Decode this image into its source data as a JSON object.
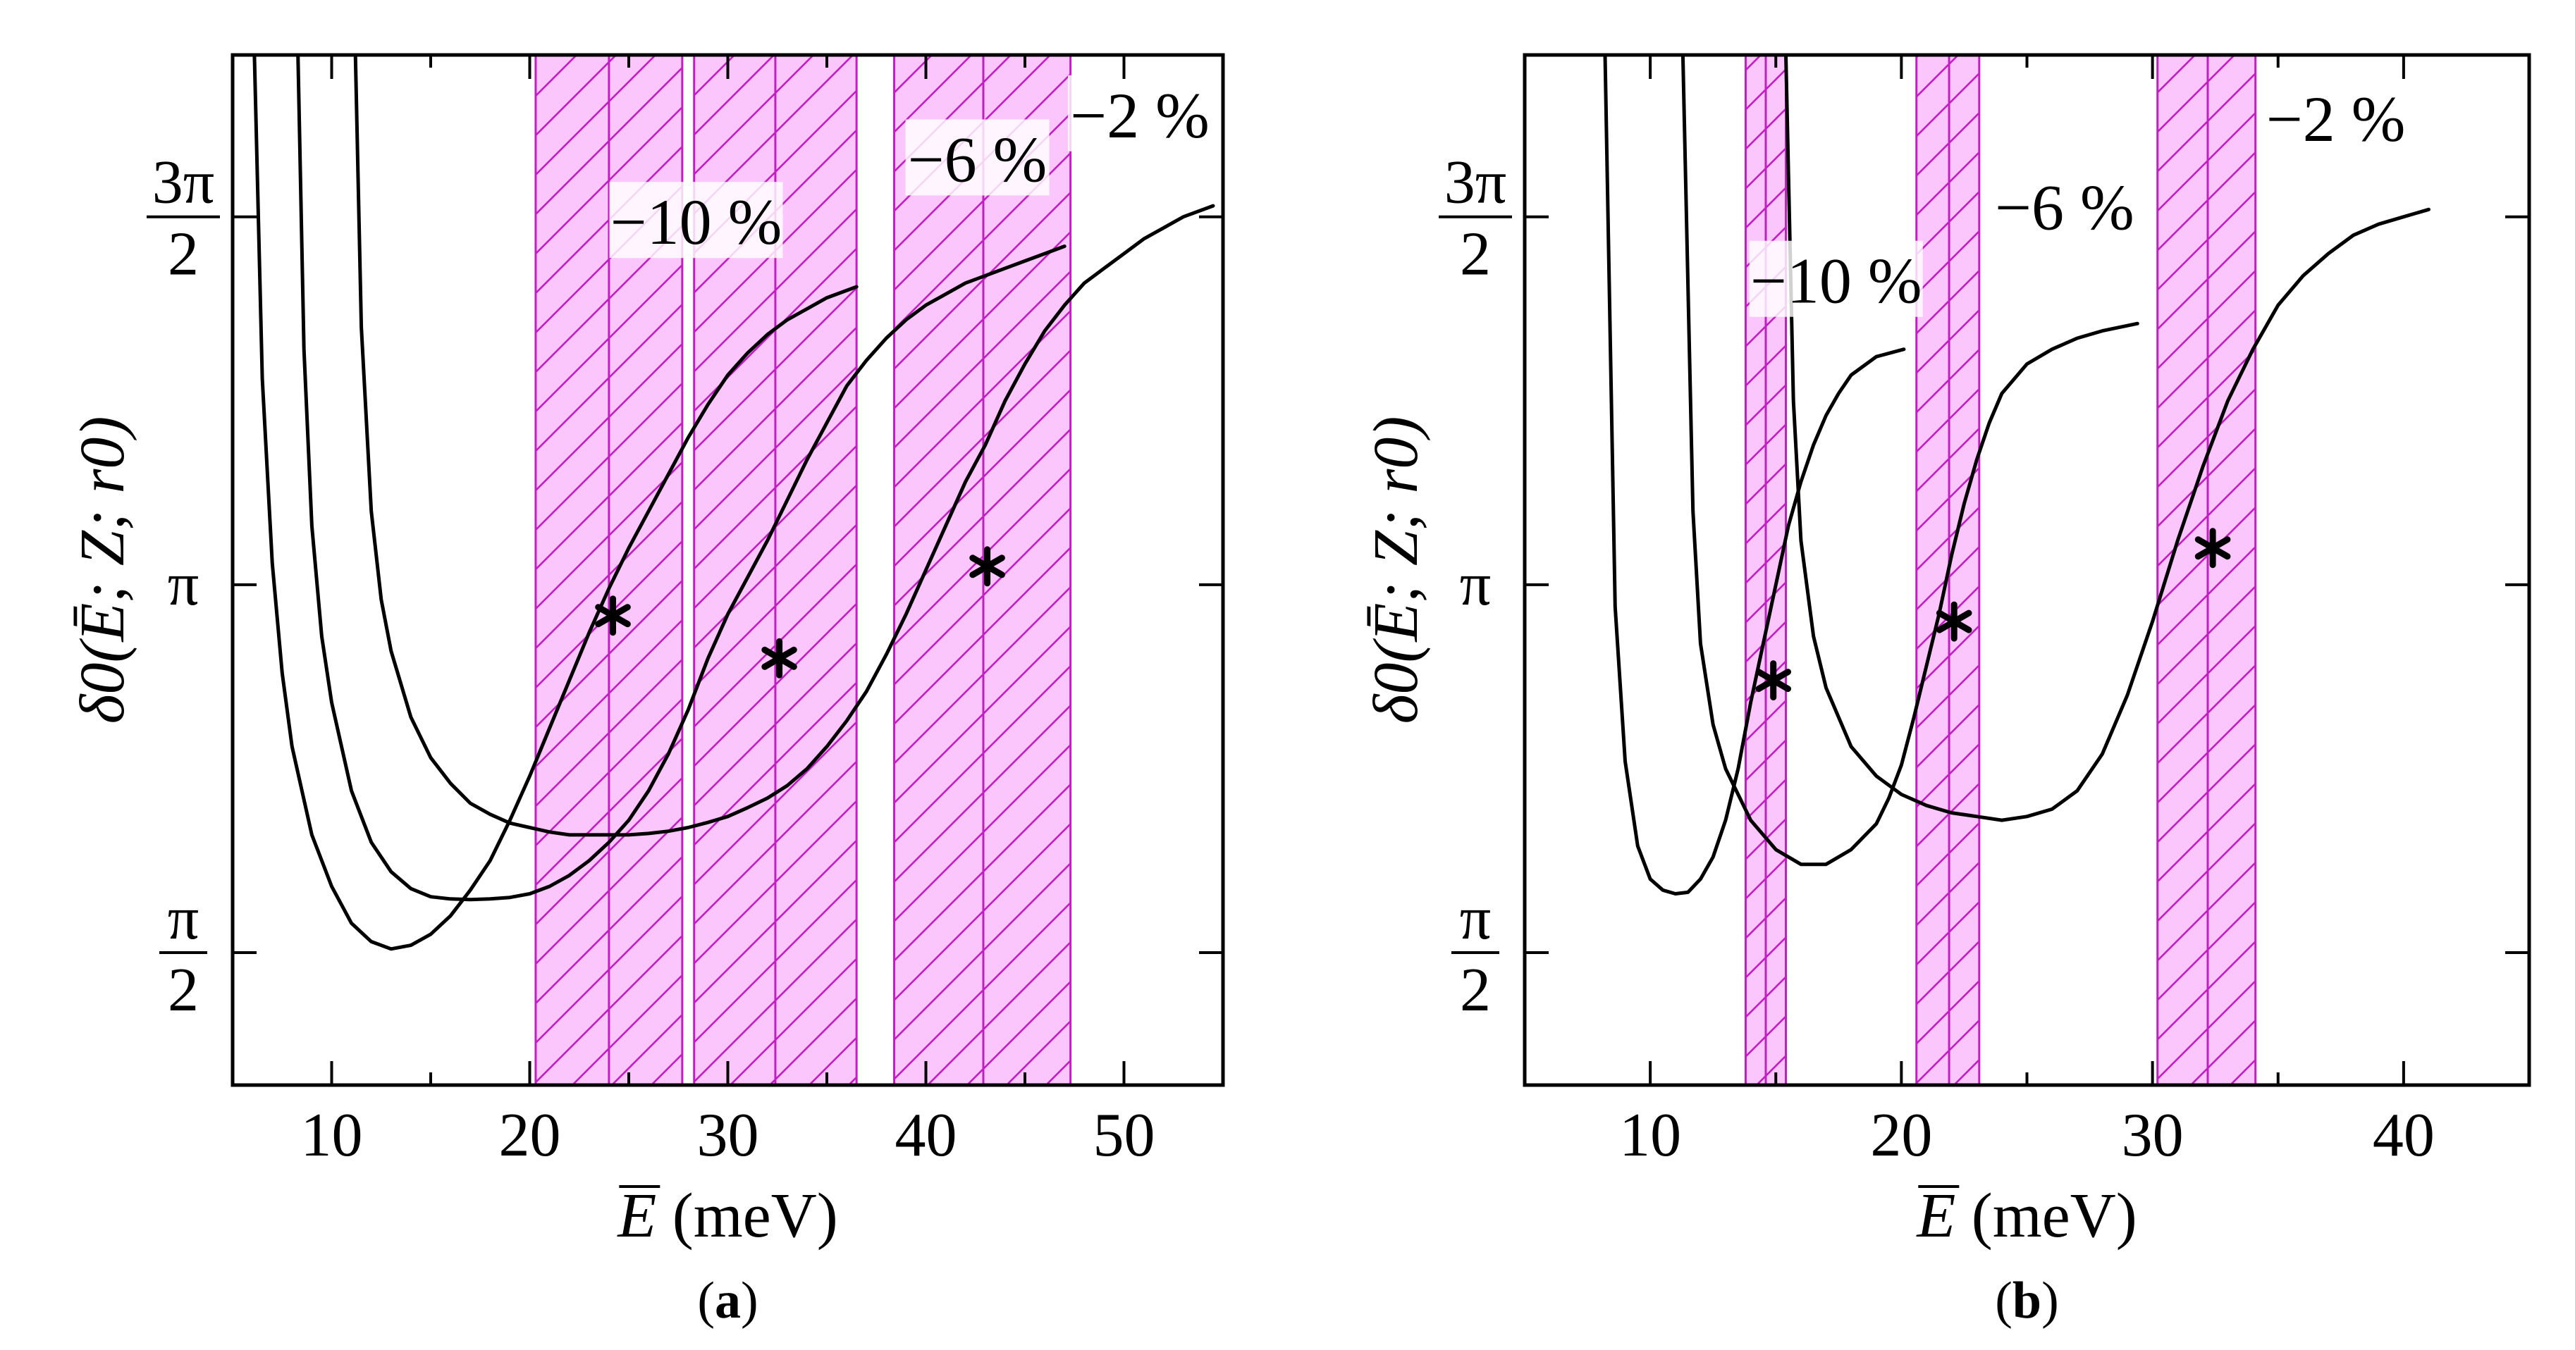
{
  "chart_data": [
    {
      "panel_label": "(a)",
      "panel_letter": "a",
      "type": "line",
      "xlabel_symbol": "E",
      "xlabel_unit": "(meV)",
      "ylabel": "δ0(Ē; Z; r0)",
      "xlim": [
        5,
        55
      ],
      "ylim": [
        0.32,
        1.72
      ],
      "x_ticks_major": [
        10,
        20,
        30,
        40,
        50
      ],
      "x_ticks_minor": [
        15,
        25,
        35,
        45
      ],
      "x_tick_labels": [
        "10",
        "20",
        "30",
        "40",
        "50"
      ],
      "y_ticks": [
        0.5,
        1.0,
        1.5
      ],
      "y_tick_labels": [
        {
          "kind": "frac",
          "num": "π",
          "den": "2"
        },
        {
          "kind": "plain",
          "text": "π"
        },
        {
          "kind": "frac",
          "num": "3π",
          "den": "2"
        }
      ],
      "bands": [
        {
          "x0": 20.3,
          "x1": 27.7,
          "inner": 24.0
        },
        {
          "x0": 28.3,
          "x1": 36.5,
          "inner": 32.4
        },
        {
          "x0": 38.4,
          "x1": 47.3,
          "inner": 42.9
        }
      ],
      "series": [
        {
          "name": "−10 %",
          "x": [
            6.1,
            6.5,
            7,
            7.5,
            8,
            9,
            10,
            11,
            12,
            13,
            14,
            15,
            16,
            17,
            18,
            19,
            20,
            21,
            22,
            23,
            24,
            25,
            26,
            27,
            28,
            29,
            30,
            31,
            32,
            33,
            34,
            35,
            36.5
          ],
          "y": [
            1.72,
            1.28,
            1.03,
            0.88,
            0.78,
            0.66,
            0.59,
            0.54,
            0.515,
            0.505,
            0.51,
            0.525,
            0.55,
            0.585,
            0.625,
            0.68,
            0.74,
            0.805,
            0.87,
            0.935,
            0.995,
            1.05,
            1.1,
            1.15,
            1.2,
            1.245,
            1.285,
            1.315,
            1.34,
            1.36,
            1.375,
            1.39,
            1.405
          ],
          "label": {
            "x": 28.4,
            "y": 1.49
          },
          "marker": {
            "x": 24.2,
            "y": 0.958
          }
        },
        {
          "name": "−6 %",
          "x": [
            8.3,
            8.6,
            9,
            9.5,
            10,
            11,
            12,
            13,
            14,
            15,
            16,
            17,
            18,
            19,
            20,
            21,
            22,
            23,
            24,
            25,
            26,
            27,
            28,
            29,
            30,
            31,
            32,
            33,
            34,
            35,
            36,
            37,
            38,
            39,
            40,
            41,
            42,
            43,
            44,
            45,
            46,
            47
          ],
          "y": [
            1.72,
            1.32,
            1.08,
            0.93,
            0.84,
            0.72,
            0.65,
            0.61,
            0.587,
            0.576,
            0.573,
            0.572,
            0.573,
            0.575,
            0.58,
            0.59,
            0.605,
            0.625,
            0.65,
            0.68,
            0.72,
            0.77,
            0.83,
            0.9,
            0.96,
            1.01,
            1.06,
            1.115,
            1.17,
            1.22,
            1.27,
            1.305,
            1.335,
            1.36,
            1.38,
            1.395,
            1.41,
            1.42,
            1.43,
            1.44,
            1.45,
            1.46
          ],
          "label": {
            "x": 42.6,
            "y": 1.575
          },
          "marker": {
            "x": 32.6,
            "y": 0.9
          }
        },
        {
          "name": "−2 %",
          "x": [
            11.2,
            11.5,
            12,
            12.5,
            13,
            14,
            15,
            16,
            17,
            18,
            19,
            20,
            21,
            22,
            23,
            24,
            25,
            26,
            27,
            28,
            29,
            30,
            31,
            32,
            33,
            34,
            35,
            36,
            37,
            38,
            39,
            40,
            41,
            42,
            43,
            44,
            45,
            46,
            47,
            48,
            49,
            50,
            51,
            52,
            53,
            54.5
          ],
          "y": [
            1.72,
            1.35,
            1.1,
            0.98,
            0.91,
            0.82,
            0.765,
            0.73,
            0.703,
            0.688,
            0.676,
            0.67,
            0.664,
            0.66,
            0.66,
            0.66,
            0.66,
            0.662,
            0.665,
            0.67,
            0.677,
            0.685,
            0.697,
            0.71,
            0.727,
            0.75,
            0.78,
            0.815,
            0.855,
            0.905,
            0.96,
            1.02,
            1.08,
            1.14,
            1.19,
            1.25,
            1.3,
            1.345,
            1.38,
            1.41,
            1.43,
            1.45,
            1.47,
            1.485,
            1.5,
            1.515
          ],
          "label": {
            "x": 50.8,
            "y": 1.635
          },
          "marker": {
            "x": 43.1,
            "y": 1.025
          }
        }
      ]
    },
    {
      "panel_label": "(b)",
      "panel_letter": "b",
      "type": "line",
      "xlabel_symbol": "E",
      "xlabel_unit": "(meV)",
      "ylabel": "δ0(Ē; Z; r0)",
      "xlim": [
        5,
        45
      ],
      "ylim": [
        0.32,
        1.72
      ],
      "x_ticks_major": [
        10,
        20,
        30,
        40
      ],
      "x_ticks_minor": [
        15,
        25,
        35
      ],
      "x_tick_labels": [
        "10",
        "20",
        "30",
        "40"
      ],
      "y_ticks": [
        0.5,
        1.0,
        1.5
      ],
      "y_tick_labels": [
        {
          "kind": "frac",
          "num": "π",
          "den": "2"
        },
        {
          "kind": "plain",
          "text": "π"
        },
        {
          "kind": "frac",
          "num": "3π",
          "den": "2"
        }
      ],
      "bands": [
        {
          "x0": 13.8,
          "x1": 15.4,
          "inner": 14.6
        },
        {
          "x0": 20.6,
          "x1": 23.1,
          "inner": 21.9
        },
        {
          "x0": 30.2,
          "x1": 34.1,
          "inner": 32.2
        }
      ],
      "series": [
        {
          "name": "−10 %",
          "x": [
            8.2,
            8.6,
            9,
            9.5,
            10,
            10.5,
            11,
            11.5,
            12,
            12.5,
            13,
            13.5,
            14,
            14.5,
            15,
            15.5,
            16,
            16.5,
            17,
            17.5,
            18,
            19,
            20.1
          ],
          "y": [
            1.72,
            0.97,
            0.76,
            0.645,
            0.6,
            0.585,
            0.58,
            0.582,
            0.6,
            0.63,
            0.68,
            0.75,
            0.84,
            0.92,
            1.0,
            1.08,
            1.14,
            1.19,
            1.23,
            1.26,
            1.285,
            1.31,
            1.32
          ],
          "label": {
            "x": 17.4,
            "y": 1.41
          },
          "marker": {
            "x": 14.9,
            "y": 0.87
          }
        },
        {
          "name": "−6 %",
          "x": [
            11.3,
            11.7,
            12,
            12.5,
            13,
            14,
            15,
            16,
            17,
            18,
            19,
            19.5,
            20,
            20.5,
            21,
            21.5,
            22,
            22.5,
            23,
            23.5,
            24,
            25,
            26,
            27,
            28,
            29.4
          ],
          "y": [
            1.72,
            1.1,
            0.92,
            0.81,
            0.75,
            0.68,
            0.64,
            0.62,
            0.62,
            0.64,
            0.675,
            0.71,
            0.755,
            0.82,
            0.89,
            0.96,
            1.04,
            1.11,
            1.17,
            1.22,
            1.26,
            1.3,
            1.32,
            1.335,
            1.345,
            1.355
          ],
          "label": {
            "x": 26.5,
            "y": 1.51
          },
          "marker": {
            "x": 22.1,
            "y": 0.95
          }
        },
        {
          "name": "−2 %",
          "x": [
            15.4,
            15.7,
            16,
            16.5,
            17,
            18,
            19,
            20,
            21,
            22,
            23,
            24,
            25,
            26,
            27,
            28,
            29,
            30,
            31,
            32,
            33,
            34,
            35,
            36,
            37,
            38,
            39,
            40,
            41
          ],
          "y": [
            1.72,
            1.25,
            1.06,
            0.93,
            0.86,
            0.78,
            0.74,
            0.715,
            0.7,
            0.69,
            0.685,
            0.68,
            0.685,
            0.695,
            0.72,
            0.77,
            0.85,
            0.95,
            1.06,
            1.16,
            1.25,
            1.32,
            1.38,
            1.42,
            1.45,
            1.475,
            1.49,
            1.5,
            1.51
          ],
          "label": {
            "x": 37.3,
            "y": 1.63
          },
          "marker": {
            "x": 32.4,
            "y": 1.05
          }
        }
      ]
    }
  ]
}
